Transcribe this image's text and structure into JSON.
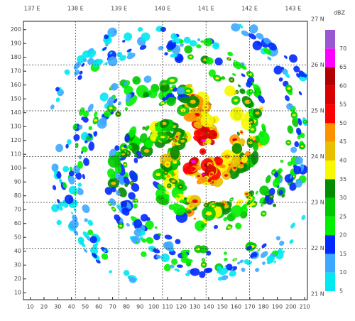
{
  "plot": {
    "x_ticks": [
      10,
      20,
      30,
      40,
      50,
      60,
      70,
      80,
      90,
      100,
      110,
      120,
      130,
      140,
      150,
      160,
      170,
      180,
      190,
      200,
      210
    ],
    "y_ticks": [
      10,
      20,
      30,
      40,
      50,
      60,
      70,
      80,
      90,
      100,
      110,
      120,
      130,
      140,
      150,
      160,
      170,
      180,
      190,
      200
    ],
    "lon_labels": [
      "137 E",
      "138 E",
      "139 E",
      "140 E",
      "141 E",
      "142 E",
      "143 E"
    ],
    "lat_labels": [
      "27 N",
      "26 N",
      "25 N",
      "24 N",
      "23 N",
      "22 N",
      "21 N"
    ],
    "colorbar": {
      "unit": "dBZ",
      "levels": [
        5,
        10,
        15,
        20,
        25,
        30,
        35,
        40,
        45,
        50,
        55,
        60,
        65,
        70
      ],
      "colors": [
        "#00e8f0",
        "#3ca8ff",
        "#0028ff",
        "#00f000",
        "#00c800",
        "#008c00",
        "#f8f800",
        "#e8c000",
        "#ff9000",
        "#ff0000",
        "#d80000",
        "#b00000",
        "#ff00ff",
        "#9a58d0"
      ]
    }
  }
}
